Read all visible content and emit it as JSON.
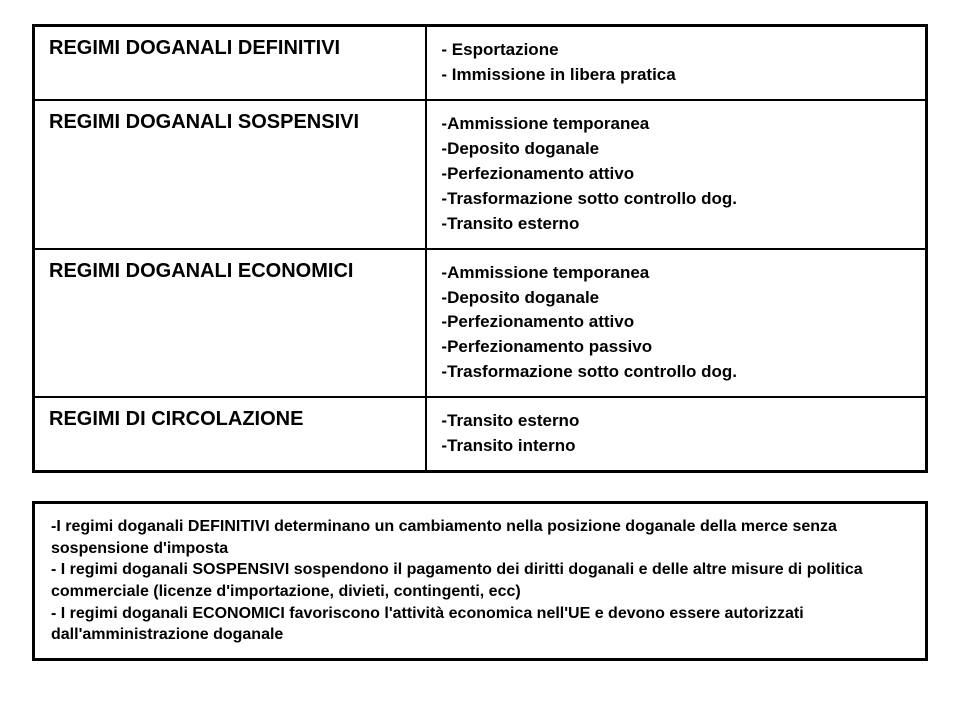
{
  "colors": {
    "text": "#000000",
    "background": "#ffffff",
    "border": "#000000"
  },
  "table": {
    "rows": [
      {
        "label": "REGIMI DOGANALI DEFINITIVI",
        "items": [
          {
            "text": "- Esportazione",
            "bold": true
          },
          {
            "text": "- Immissione in libera pratica",
            "bold": true
          }
        ]
      },
      {
        "label": "REGIMI DOGANALI SOSPENSIVI",
        "items": [
          {
            "text": "-Ammissione temporanea",
            "bold": true
          },
          {
            "text": "-Deposito doganale",
            "bold": true
          },
          {
            "text": "-Perfezionamento attivo",
            "bold": true
          },
          {
            "text": "-Trasformazione sotto controllo dog.",
            "bold": true
          },
          {
            "text": "-Transito esterno",
            "bold": true
          }
        ]
      },
      {
        "label": "REGIMI DOGANALI ECONOMICI",
        "items": [
          {
            "text": "-Ammissione temporanea",
            "bold": true
          },
          {
            "text": "-Deposito doganale",
            "bold": true
          },
          {
            "text": "-Perfezionamento attivo",
            "bold": true
          },
          {
            "text": "-Perfezionamento passivo",
            "bold": true
          },
          {
            "text": "-Trasformazione sotto controllo dog.",
            "bold": true
          }
        ]
      },
      {
        "label": "REGIMI DI CIRCOLAZIONE",
        "items": [
          {
            "text": "-Transito esterno",
            "bold": true
          },
          {
            "text": "-Transito interno",
            "bold": true
          }
        ]
      }
    ]
  },
  "notes": {
    "lines": [
      "-I regimi doganali DEFINITIVI determinano un cambiamento nella posizione doganale della merce senza sospensione d'imposta",
      "- I regimi doganali SOSPENSIVI sospendono il pagamento dei diritti doganali e delle altre misure di politica commerciale (licenze d'importazione, divieti, contingenti, ecc)",
      "- I regimi doganali ECONOMICI favoriscono l'attività economica nell'UE e devono essere autorizzati dall'amministrazione doganale"
    ]
  }
}
